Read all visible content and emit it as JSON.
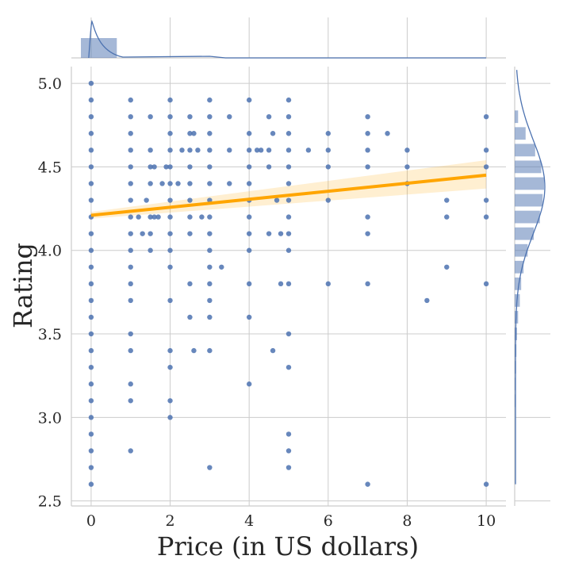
{
  "chart_data": {
    "type": "scatter",
    "title": "",
    "xlabel": "Price (in US dollars)",
    "ylabel": "Rating",
    "xlim": [
      -0.5,
      10.5
    ],
    "ylim": [
      2.47,
      5.1
    ],
    "xticks": [
      0,
      2,
      4,
      6,
      8,
      10
    ],
    "yticks": [
      2.5,
      3.0,
      3.5,
      4.0,
      4.5,
      5.0
    ],
    "xtick_labels": [
      "0",
      "2",
      "4",
      "6",
      "8",
      "10"
    ],
    "ytick_labels": [
      "2.5",
      "3.0",
      "3.5",
      "4.0",
      "4.5",
      "5.0"
    ],
    "grid": true,
    "points_color": "#4c72b0",
    "regression_color": "#ffa500",
    "ci_color": "#ffa500",
    "regression": {
      "x": [
        0,
        10
      ],
      "y": [
        4.21,
        4.45
      ],
      "ci_low": [
        4.19,
        4.37
      ],
      "ci_high": [
        4.23,
        4.54
      ]
    },
    "points": [
      [
        0,
        5.0
      ],
      [
        0,
        4.9
      ],
      [
        0,
        4.8
      ],
      [
        0,
        4.7
      ],
      [
        0,
        4.6
      ],
      [
        0,
        4.5
      ],
      [
        0,
        4.4
      ],
      [
        0,
        4.3
      ],
      [
        0,
        4.2
      ],
      [
        0,
        4.1
      ],
      [
        0,
        4.0
      ],
      [
        0,
        3.9
      ],
      [
        0,
        3.8
      ],
      [
        0,
        3.7
      ],
      [
        0,
        3.6
      ],
      [
        0,
        3.5
      ],
      [
        0,
        3.4
      ],
      [
        0,
        3.3
      ],
      [
        0,
        3.2
      ],
      [
        0,
        3.1
      ],
      [
        0,
        3.0
      ],
      [
        0,
        2.9
      ],
      [
        0,
        2.8
      ],
      [
        0,
        2.7
      ],
      [
        0,
        2.6
      ],
      [
        1,
        4.9
      ],
      [
        1,
        4.8
      ],
      [
        1,
        4.7
      ],
      [
        1,
        4.6
      ],
      [
        1,
        4.5
      ],
      [
        1,
        4.4
      ],
      [
        1,
        4.3
      ],
      [
        1,
        4.2
      ],
      [
        1,
        4.1
      ],
      [
        1,
        4.0
      ],
      [
        1,
        3.9
      ],
      [
        1,
        3.8
      ],
      [
        1,
        3.7
      ],
      [
        1,
        3.5
      ],
      [
        1,
        3.4
      ],
      [
        1,
        3.2
      ],
      [
        1,
        3.1
      ],
      [
        1,
        2.8
      ],
      [
        1.2,
        4.2
      ],
      [
        1.3,
        4.1
      ],
      [
        1.4,
        4.3
      ],
      [
        1.5,
        4.8
      ],
      [
        1.5,
        4.6
      ],
      [
        1.5,
        4.5
      ],
      [
        1.5,
        4.4
      ],
      [
        1.5,
        4.2
      ],
      [
        1.5,
        4.1
      ],
      [
        1.5,
        4.0
      ],
      [
        1.6,
        4.5
      ],
      [
        1.6,
        4.2
      ],
      [
        1.7,
        4.2
      ],
      [
        1.8,
        4.4
      ],
      [
        1.9,
        4.5
      ],
      [
        2,
        4.9
      ],
      [
        2,
        4.8
      ],
      [
        2,
        4.7
      ],
      [
        2,
        4.6
      ],
      [
        2,
        4.5
      ],
      [
        2,
        4.4
      ],
      [
        2,
        4.3
      ],
      [
        2,
        4.2
      ],
      [
        2,
        4.1
      ],
      [
        2,
        4.0
      ],
      [
        2,
        3.9
      ],
      [
        2,
        3.7
      ],
      [
        2,
        3.4
      ],
      [
        2,
        3.3
      ],
      [
        2,
        3.1
      ],
      [
        2,
        3.0
      ],
      [
        2.2,
        4.4
      ],
      [
        2.3,
        4.6
      ],
      [
        2.5,
        4.8
      ],
      [
        2.5,
        4.7
      ],
      [
        2.5,
        4.6
      ],
      [
        2.5,
        4.5
      ],
      [
        2.5,
        4.4
      ],
      [
        2.5,
        4.3
      ],
      [
        2.5,
        4.2
      ],
      [
        2.5,
        4.1
      ],
      [
        2.5,
        3.8
      ],
      [
        2.5,
        3.6
      ],
      [
        2.6,
        4.7
      ],
      [
        2.6,
        3.4
      ],
      [
        2.7,
        4.6
      ],
      [
        2.8,
        4.2
      ],
      [
        3,
        4.9
      ],
      [
        3,
        4.8
      ],
      [
        3,
        4.7
      ],
      [
        3,
        4.6
      ],
      [
        3,
        4.5
      ],
      [
        3,
        4.4
      ],
      [
        3,
        4.3
      ],
      [
        3,
        4.2
      ],
      [
        3,
        4.1
      ],
      [
        3,
        4.0
      ],
      [
        3,
        3.9
      ],
      [
        3,
        3.8
      ],
      [
        3,
        3.7
      ],
      [
        3,
        3.6
      ],
      [
        3,
        3.4
      ],
      [
        3,
        2.7
      ],
      [
        3.3,
        3.9
      ],
      [
        3.5,
        4.8
      ],
      [
        3.5,
        4.6
      ],
      [
        3.5,
        4.4
      ],
      [
        4,
        4.9
      ],
      [
        4,
        4.7
      ],
      [
        4,
        4.6
      ],
      [
        4,
        4.5
      ],
      [
        4,
        4.4
      ],
      [
        4,
        4.3
      ],
      [
        4,
        4.2
      ],
      [
        4,
        4.1
      ],
      [
        4,
        4.0
      ],
      [
        4,
        3.8
      ],
      [
        4,
        3.6
      ],
      [
        4,
        3.2
      ],
      [
        4.2,
        4.6
      ],
      [
        4.3,
        4.6
      ],
      [
        4.5,
        4.8
      ],
      [
        4.5,
        4.6
      ],
      [
        4.5,
        4.5
      ],
      [
        4.5,
        4.1
      ],
      [
        4.6,
        4.7
      ],
      [
        4.6,
        3.4
      ],
      [
        4.7,
        4.3
      ],
      [
        4.8,
        4.1
      ],
      [
        4.8,
        3.8
      ],
      [
        5,
        4.9
      ],
      [
        5,
        4.8
      ],
      [
        5,
        4.7
      ],
      [
        5,
        4.6
      ],
      [
        5,
        4.5
      ],
      [
        5,
        4.4
      ],
      [
        5,
        4.3
      ],
      [
        5,
        4.2
      ],
      [
        5,
        4.1
      ],
      [
        5,
        4.0
      ],
      [
        5,
        3.8
      ],
      [
        5,
        3.5
      ],
      [
        5,
        3.3
      ],
      [
        5,
        2.9
      ],
      [
        5,
        2.8
      ],
      [
        5,
        2.7
      ],
      [
        5.5,
        4.6
      ],
      [
        6,
        4.7
      ],
      [
        6,
        4.6
      ],
      [
        6,
        4.5
      ],
      [
        6,
        4.3
      ],
      [
        6,
        3.8
      ],
      [
        7,
        4.8
      ],
      [
        7,
        4.7
      ],
      [
        7,
        4.6
      ],
      [
        7,
        4.5
      ],
      [
        7,
        4.2
      ],
      [
        7,
        4.1
      ],
      [
        7,
        3.8
      ],
      [
        7,
        2.6
      ],
      [
        7.5,
        4.7
      ],
      [
        8,
        4.6
      ],
      [
        8,
        4.5
      ],
      [
        8,
        4.4
      ],
      [
        8.5,
        3.7
      ],
      [
        9,
        4.3
      ],
      [
        9,
        4.2
      ],
      [
        9,
        3.9
      ],
      [
        10,
        4.8
      ],
      [
        10,
        4.6
      ],
      [
        10,
        4.5
      ],
      [
        10,
        4.3
      ],
      [
        10,
        4.2
      ],
      [
        10,
        3.8
      ],
      [
        10,
        2.6
      ]
    ],
    "marginal_x": {
      "bins": [
        [
          -0.5,
          0.65
        ]
      ],
      "counts": [
        1.0
      ]
    },
    "marginal_y": {
      "bin_centers": [
        4.8,
        4.7,
        4.6,
        4.5,
        4.4,
        4.3,
        4.2,
        4.1,
        4.0,
        3.9,
        3.8,
        3.7,
        3.6,
        3.5,
        3.4,
        3.3,
        3.2,
        3.1
      ],
      "counts": [
        0.1,
        0.32,
        0.6,
        0.78,
        0.86,
        0.82,
        0.74,
        0.56,
        0.38,
        0.26,
        0.19,
        0.15,
        0.1,
        0.07,
        0.05,
        0.04,
        0.03,
        0.02
      ]
    }
  }
}
